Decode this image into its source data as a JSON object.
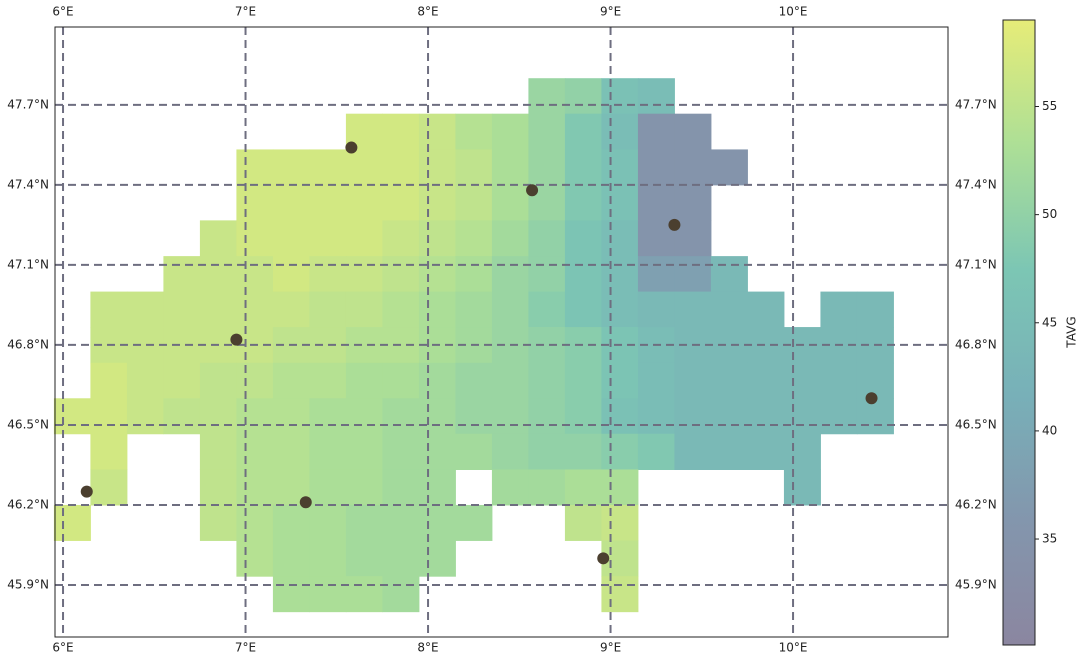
{
  "chart_data": {
    "type": "gridmap",
    "xlim": [
      5.956,
      10.849
    ],
    "ylim": [
      45.705,
      47.992
    ],
    "xticks": [
      {
        "value": 6,
        "label": "6°E"
      },
      {
        "value": 7,
        "label": "7°E"
      },
      {
        "value": 8,
        "label": "8°E"
      },
      {
        "value": 9,
        "label": "9°E"
      },
      {
        "value": 10,
        "label": "10°E"
      }
    ],
    "yticks": [
      {
        "value": 45.9,
        "label": "45.9°N"
      },
      {
        "value": 46.2,
        "label": "46.2°N"
      },
      {
        "value": 46.5,
        "label": "46.5°N"
      },
      {
        "value": 46.8,
        "label": "46.8°N"
      },
      {
        "value": 47.1,
        "label": "47.1°N"
      },
      {
        "value": 47.4,
        "label": "47.4°N"
      },
      {
        "value": 47.7,
        "label": "47.7°N"
      }
    ],
    "grid": true,
    "grid_color": "#6e6e80",
    "lon_edges": [
      5.95,
      6.15,
      6.35,
      6.55,
      6.75,
      6.95,
      7.15,
      7.35,
      7.55,
      7.75,
      7.95,
      8.15,
      8.35,
      8.55,
      8.75,
      8.95,
      9.15,
      9.35,
      9.55,
      9.75,
      9.95,
      10.15,
      10.35,
      10.55
    ],
    "lat_edges": [
      47.8,
      47.667,
      47.533,
      47.4,
      47.267,
      47.133,
      47.0,
      46.867,
      46.733,
      46.6,
      46.467,
      46.333,
      46.2,
      46.067,
      45.933,
      45.8
    ],
    "values": [
      [
        null,
        null,
        null,
        null,
        null,
        null,
        null,
        null,
        null,
        null,
        null,
        null,
        null,
        51,
        50,
        46,
        45,
        null,
        null,
        null,
        null,
        null,
        null
      ],
      [
        null,
        null,
        null,
        null,
        null,
        null,
        null,
        null,
        57,
        57,
        56,
        54,
        53,
        51,
        48,
        45,
        35,
        35,
        null,
        null,
        null,
        null,
        null
      ],
      [
        null,
        null,
        null,
        null,
        null,
        57,
        57,
        57,
        57,
        57,
        56,
        55,
        53,
        51,
        48,
        46,
        35,
        35,
        35,
        null,
        null,
        null,
        null
      ],
      [
        null,
        null,
        null,
        null,
        null,
        57,
        57,
        57,
        57,
        57,
        56,
        55,
        53,
        51,
        48,
        46,
        35,
        35,
        null,
        null,
        null,
        null,
        null
      ],
      [
        null,
        null,
        null,
        null,
        56,
        57,
        57,
        57,
        57,
        56,
        55,
        54,
        52,
        50,
        47,
        45,
        35,
        35,
        null,
        null,
        null,
        null,
        null
      ],
      [
        null,
        null,
        null,
        56,
        56,
        56,
        57,
        56,
        56,
        55,
        54,
        53,
        51,
        50,
        47,
        45,
        38,
        38,
        44,
        null,
        null,
        null,
        null
      ],
      [
        null,
        56,
        56,
        56,
        56,
        56,
        56,
        55,
        55,
        54,
        53,
        52,
        51,
        49,
        47,
        45,
        44,
        44,
        44,
        44,
        null,
        44,
        44
      ],
      [
        null,
        56,
        56,
        56,
        56,
        56,
        55,
        55,
        54,
        54,
        53,
        52,
        51,
        50,
        49,
        47,
        45,
        44,
        44,
        44,
        44,
        44,
        44
      ],
      [
        null,
        57,
        56,
        56,
        55,
        55,
        54,
        54,
        53,
        53,
        52,
        51,
        51,
        50,
        49,
        47,
        45,
        44,
        44,
        44,
        44,
        44,
        44
      ],
      [
        57,
        57,
        56,
        55,
        55,
        54,
        54,
        53,
        53,
        52,
        52,
        51,
        51,
        50,
        49,
        46,
        45,
        44,
        44,
        44,
        44,
        44,
        44
      ],
      [
        null,
        57,
        null,
        null,
        55,
        54,
        54,
        53,
        53,
        52,
        52,
        52,
        51,
        50,
        50,
        49,
        48,
        44,
        44,
        44,
        44,
        null,
        null
      ],
      [
        null,
        56,
        null,
        null,
        55,
        54,
        54,
        53,
        53,
        52,
        52,
        null,
        52,
        52,
        53,
        53,
        null,
        null,
        null,
        null,
        44,
        null,
        null
      ],
      [
        57,
        null,
        null,
        null,
        55,
        54,
        53,
        53,
        52,
        52,
        52,
        52,
        null,
        null,
        55,
        56,
        null,
        null,
        null,
        null,
        null,
        null,
        null
      ],
      [
        null,
        null,
        null,
        null,
        null,
        54,
        53,
        53,
        52,
        52,
        52,
        null,
        null,
        null,
        null,
        55,
        null,
        null,
        null,
        null,
        null,
        null,
        null
      ],
      [
        null,
        null,
        null,
        null,
        null,
        null,
        53,
        53,
        53,
        52,
        null,
        null,
        null,
        null,
        null,
        56,
        null,
        null,
        null,
        null,
        null,
        null,
        null
      ]
    ],
    "stations": {
      "color": "#4b3f2f",
      "lon": [
        6.13,
        6.95,
        7.33,
        7.58,
        8.57,
        9.35,
        8.96,
        10.43
      ],
      "lat": [
        46.25,
        46.82,
        46.21,
        47.54,
        47.38,
        47.25,
        46.0,
        46.6
      ]
    },
    "colorbar": {
      "label": "TAVG",
      "lim": [
        30.1,
        59
      ],
      "ticks": [
        35,
        40,
        45,
        50,
        55
      ],
      "colors": [
        "#8b86a0",
        "#8396ad",
        "#78b0b8",
        "#7cc6b4",
        "#addf96",
        "#e6ec78"
      ]
    }
  }
}
